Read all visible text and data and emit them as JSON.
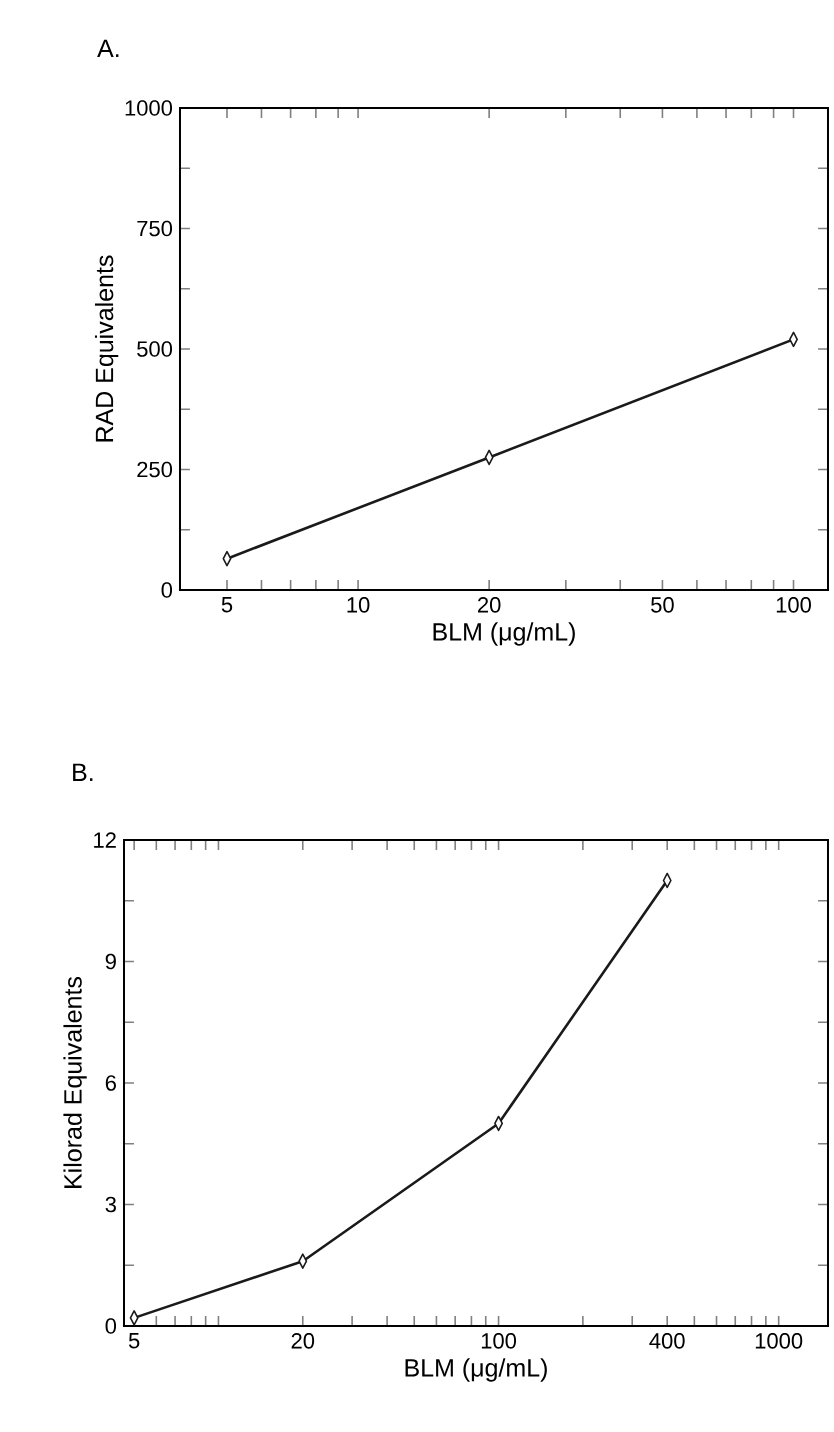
{
  "chart_data": [
    {
      "type": "line",
      "title": "A.",
      "xlabel": "BLM (μg/mL)",
      "ylabel": "RAD Equivalents",
      "log": "x",
      "marker": "diamond",
      "line_style": "solid",
      "x": [
        5,
        20,
        100
      ],
      "series": [
        {
          "color": "#1a1a1a",
          "values": [
            65,
            275,
            520
          ]
        }
      ],
      "xlim": [
        3.9,
        120
      ],
      "ylim": [
        0,
        1000
      ],
      "xticks": [
        5,
        {
          "value": 6,
          "label": null
        },
        {
          "value": 7,
          "label": null
        },
        {
          "value": 8,
          "label": null
        },
        {
          "value": 9,
          "label": null
        },
        10,
        20,
        {
          "value": 30,
          "label": null
        },
        {
          "value": 40,
          "label": null
        },
        50,
        {
          "value": 60,
          "label": null
        },
        {
          "value": 70,
          "label": null
        },
        {
          "value": 80,
          "label": null
        },
        {
          "value": 90,
          "label": null
        },
        100
      ],
      "yticks": [
        0,
        {
          "value": 125,
          "label": null
        },
        250,
        {
          "value": 375,
          "label": null
        },
        500,
        {
          "value": 625,
          "label": null
        },
        750,
        {
          "value": 875,
          "label": null
        },
        1000
      ]
    },
    {
      "type": "line",
      "title": "B.",
      "xlabel": "BLM (μg/mL)",
      "ylabel": "Kilorad Equivalents",
      "log": "x",
      "marker": "diamond",
      "line_style": "solid",
      "x": [
        5,
        20,
        100,
        400
      ],
      "series": [
        {
          "color": "#1a1a1a",
          "values": [
            0.2,
            1.6,
            5.0,
            11
          ]
        }
      ],
      "xlim": [
        4.6,
        1500
      ],
      "ylim": [
        0,
        12
      ],
      "xticks": [
        5,
        {
          "value": 6,
          "label": null
        },
        {
          "value": 7,
          "label": null
        },
        {
          "value": 8,
          "label": null
        },
        {
          "value": 9,
          "label": null
        },
        {
          "value": 10,
          "label": null
        },
        20,
        {
          "value": 30,
          "label": null
        },
        {
          "value": 40,
          "label": null
        },
        {
          "value": 50,
          "label": null
        },
        {
          "value": 60,
          "label": null
        },
        {
          "value": 70,
          "label": null
        },
        {
          "value": 80,
          "label": null
        },
        {
          "value": 90,
          "label": null
        },
        100,
        {
          "value": 200,
          "label": null
        },
        {
          "value": 300,
          "label": null
        },
        400,
        {
          "value": 500,
          "label": null
        },
        {
          "value": 600,
          "label": null
        },
        {
          "value": 700,
          "label": null
        },
        {
          "value": 800,
          "label": null
        },
        {
          "value": 900,
          "label": null
        },
        1000
      ],
      "yticks": [
        0,
        {
          "value": 1.5,
          "label": null
        },
        3,
        {
          "value": 4.5,
          "label": null
        },
        6,
        {
          "value": 7.5,
          "label": null
        },
        9,
        {
          "value": 10.5,
          "label": null
        },
        12
      ]
    }
  ]
}
